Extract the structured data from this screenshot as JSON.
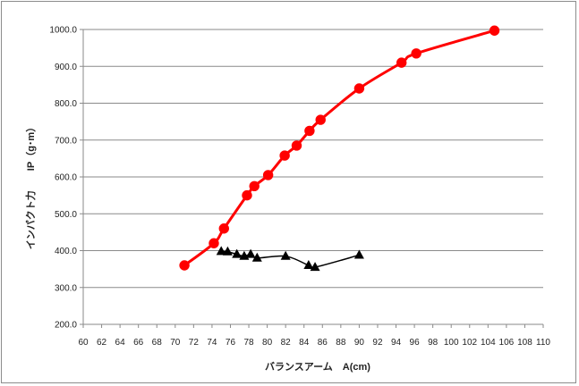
{
  "chart_data": {
    "type": "line",
    "xlabel": "バランスアーム　A(cm)",
    "ylabel": "インパクト力　　IP（g･m）",
    "xlim": [
      60,
      110
    ],
    "ylim": [
      200,
      1000
    ],
    "x_ticks": [
      "60",
      "62",
      "64",
      "66",
      "68",
      "70",
      "72",
      "74",
      "76",
      "78",
      "80",
      "82",
      "84",
      "86",
      "88",
      "90",
      "92",
      "94",
      "96",
      "98",
      "100",
      "102",
      "104",
      "106",
      "108",
      "110"
    ],
    "y_ticks": [
      "200.0",
      "300.0",
      "400.0",
      "500.0",
      "600.0",
      "700.0",
      "800.0",
      "900.0",
      "1000.0"
    ],
    "grid": "horizontal",
    "legend": "none",
    "series": [
      {
        "color": "#ff0000",
        "marker": "circle",
        "smooth": true,
        "points": [
          {
            "x": 71.0,
            "y": 360
          },
          {
            "x": 74.2,
            "y": 420
          },
          {
            "x": 75.3,
            "y": 460
          },
          {
            "x": 77.8,
            "y": 550
          },
          {
            "x": 78.6,
            "y": 575
          },
          {
            "x": 80.1,
            "y": 605
          },
          {
            "x": 81.9,
            "y": 658
          },
          {
            "x": 83.2,
            "y": 685
          },
          {
            "x": 84.6,
            "y": 725
          },
          {
            "x": 85.8,
            "y": 755
          },
          {
            "x": 90.0,
            "y": 840
          },
          {
            "x": 94.6,
            "y": 910
          },
          {
            "x": 96.2,
            "y": 935
          },
          {
            "x": 104.7,
            "y": 997
          }
        ]
      },
      {
        "color": "#000000",
        "marker": "triangle",
        "smooth": true,
        "points": [
          {
            "x": 75.0,
            "y": 398
          },
          {
            "x": 75.7,
            "y": 397
          },
          {
            "x": 76.7,
            "y": 390
          },
          {
            "x": 77.5,
            "y": 385
          },
          {
            "x": 78.2,
            "y": 390
          },
          {
            "x": 78.9,
            "y": 380
          },
          {
            "x": 82.0,
            "y": 385
          },
          {
            "x": 84.5,
            "y": 360
          },
          {
            "x": 85.2,
            "y": 355
          },
          {
            "x": 90.0,
            "y": 388
          }
        ]
      }
    ]
  }
}
